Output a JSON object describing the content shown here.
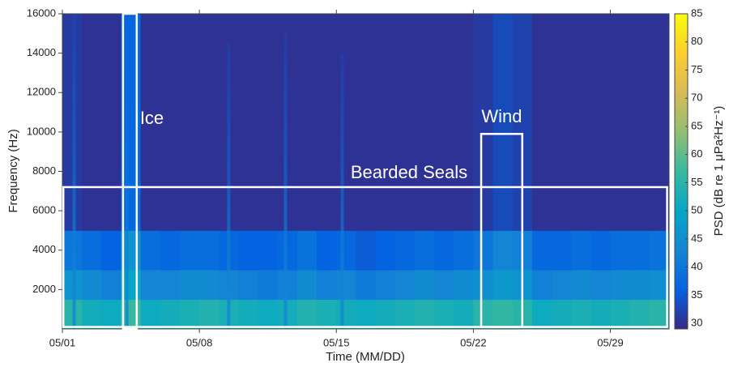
{
  "chart_data": {
    "type": "spectrogram",
    "xlabel": "Time (MM/DD)",
    "ylabel": "Frequency (Hz)",
    "colorbar_label": "PSD (dB re 1 μPa²Hz⁻¹)",
    "colormap": "parula",
    "xlim": [
      1,
      32
    ],
    "xticks": [
      {
        "value": 1,
        "label": "05/01"
      },
      {
        "value": 8,
        "label": "05/08"
      },
      {
        "value": 15,
        "label": "05/15"
      },
      {
        "value": 22,
        "label": "05/22"
      },
      {
        "value": 29,
        "label": "05/29"
      }
    ],
    "ylim": [
      0,
      16000
    ],
    "yticks": [
      2000,
      4000,
      6000,
      8000,
      10000,
      12000,
      14000,
      16000
    ],
    "clim": [
      29,
      85
    ],
    "cticks": [
      30,
      35,
      40,
      45,
      50,
      55,
      60,
      65,
      70,
      75,
      80,
      85
    ],
    "x": [
      1,
      2,
      3,
      4,
      5,
      6,
      7,
      8,
      9,
      10,
      11,
      12,
      13,
      14,
      15,
      16,
      17,
      18,
      19,
      20,
      21,
      22,
      23,
      24,
      25,
      26,
      27,
      28,
      29,
      30,
      31
    ],
    "band_edges": [
      0,
      1500,
      3000,
      5000,
      16000
    ],
    "levels": [
      [
        55,
        52,
        51,
        57,
        51,
        52,
        53,
        54,
        53,
        52,
        51,
        52,
        54,
        53,
        52,
        51,
        52,
        53,
        54,
        53,
        52,
        55,
        56,
        55,
        51,
        52,
        53,
        52,
        53,
        54,
        55
      ],
      [
        46,
        44,
        42,
        50,
        43,
        43,
        44,
        44,
        43,
        42,
        41,
        42,
        44,
        42,
        43,
        41,
        42,
        43,
        44,
        43,
        44,
        45,
        47,
        46,
        42,
        43,
        44,
        43,
        44,
        44,
        45
      ],
      [
        40,
        38,
        36,
        46,
        38,
        37,
        38,
        38,
        37,
        36,
        36,
        37,
        39,
        36,
        37,
        35,
        36,
        37,
        38,
        37,
        38,
        40,
        43,
        42,
        37,
        37,
        38,
        37,
        38,
        38,
        39
      ],
      [
        31,
        30,
        30,
        37,
        30,
        30,
        30,
        30,
        30,
        30,
        30,
        30,
        30,
        30,
        30,
        30,
        30,
        30,
        30,
        30,
        30,
        31,
        33,
        32,
        30,
        30,
        30,
        30,
        30,
        30,
        30
      ]
    ],
    "transients": {
      "x": [
        1.6,
        4.3,
        9.5,
        12.4,
        15.3
      ],
      "top": [
        16000,
        16000,
        14500,
        15000,
        14000
      ]
    },
    "annotations": [
      {
        "label": "Ice",
        "x": [
          4.1,
          4.8
        ],
        "y": [
          0,
          16000
        ]
      },
      {
        "label": "Bearded Seals",
        "x": [
          1.05,
          31.9
        ],
        "y": [
          100,
          7200
        ]
      },
      {
        "label": "Wind",
        "x": [
          22.4,
          24.5
        ],
        "y": [
          100,
          9900
        ]
      }
    ]
  }
}
